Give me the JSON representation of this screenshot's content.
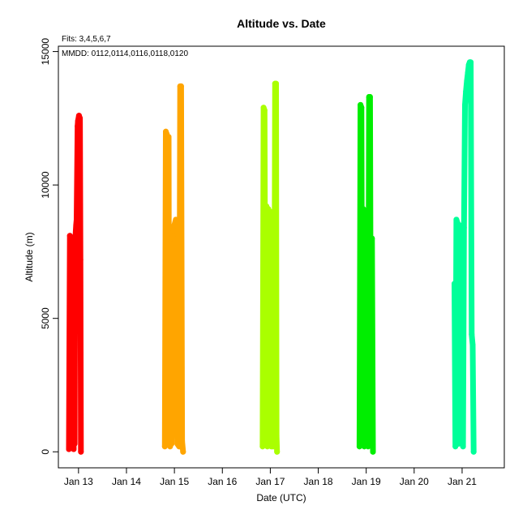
{
  "chart_data": {
    "type": "line",
    "title": "Altitude  vs. Date",
    "xlabel": "Date (UTC)",
    "ylabel": "Altitude (m)",
    "annotations": [
      "Fits: 3,4,5,6,7",
      "MMDD: 0112,0114,0116,0118,0120"
    ],
    "xlim": [
      12.58,
      21.88
    ],
    "ylim": [
      -600,
      15200
    ],
    "x_ticks": [
      {
        "value": 13,
        "label": "Jan 13"
      },
      {
        "value": 14,
        "label": "Jan 14"
      },
      {
        "value": 15,
        "label": "Jan 15"
      },
      {
        "value": 16,
        "label": "Jan 16"
      },
      {
        "value": 17,
        "label": "Jan 17"
      },
      {
        "value": 18,
        "label": "Jan 18"
      },
      {
        "value": 19,
        "label": "Jan 19"
      },
      {
        "value": 20,
        "label": "Jan 20"
      },
      {
        "value": 21,
        "label": "Jan 21"
      }
    ],
    "y_ticks": [
      {
        "value": 0,
        "label": "0"
      },
      {
        "value": 5000,
        "label": "5000"
      },
      {
        "value": 10000,
        "label": "10000"
      },
      {
        "value": 15000,
        "label": "15000"
      }
    ],
    "grid": false,
    "legend": "none",
    "series": [
      {
        "color": "#ff0000",
        "x": [
          12.8,
          12.82,
          12.85,
          12.86,
          12.88,
          12.9,
          12.91,
          12.92,
          12.93,
          12.95,
          12.96,
          12.98,
          12.99,
          13.01,
          13.03,
          13.04,
          13.05
        ],
        "y": [
          100,
          8100,
          8000,
          200,
          8000,
          100,
          8000,
          300,
          7900,
          8500,
          8700,
          12200,
          12400,
          12600,
          12500,
          7200,
          0
        ]
      },
      {
        "color": "#ffa500",
        "x": [
          14.8,
          14.82,
          14.84,
          14.86,
          14.88,
          14.89,
          14.9,
          14.91,
          14.92,
          14.94,
          14.96,
          14.98,
          15.0,
          15.03,
          15.06,
          15.1,
          15.12,
          15.14,
          15.16,
          15.18
        ],
        "y": [
          200,
          12000,
          11900,
          2000,
          11800,
          300,
          7900,
          200,
          8000,
          300,
          8100,
          8300,
          8500,
          8700,
          300,
          200,
          13700,
          13700,
          400,
          0
        ]
      },
      {
        "color": "#aaff00",
        "x": [
          16.84,
          16.86,
          16.88,
          16.9,
          16.92,
          16.94,
          16.96,
          16.98,
          17.0,
          17.02,
          17.04,
          17.06,
          17.08,
          17.1,
          17.12,
          17.13,
          17.14
        ],
        "y": [
          200,
          12900,
          12800,
          300,
          9200,
          200,
          9100,
          300,
          9000,
          200,
          300,
          200,
          300,
          13800,
          13800,
          600,
          0
        ]
      },
      {
        "color": "#00ee00",
        "x": [
          18.86,
          18.88,
          18.9,
          18.92,
          18.94,
          18.96,
          18.98,
          19.0,
          19.02,
          19.04,
          19.06,
          19.08,
          19.1,
          19.12,
          19.14
        ],
        "y": [
          200,
          13000,
          12900,
          300,
          9100,
          200,
          8900,
          300,
          8500,
          200,
          13300,
          13300,
          300,
          8000,
          0
        ]
      },
      {
        "color": "#00ff99",
        "x": [
          20.84,
          20.86,
          20.88,
          20.9,
          20.92,
          20.94,
          20.96,
          20.98,
          21.0,
          21.02,
          21.04,
          21.06,
          21.08,
          21.1,
          21.12,
          21.14,
          21.16,
          21.18,
          21.2,
          21.22,
          21.24
        ],
        "y": [
          6300,
          200,
          8700,
          8600,
          300,
          8500,
          400,
          8300,
          300,
          200,
          8400,
          13000,
          13500,
          13900,
          14200,
          14500,
          14600,
          14600,
          4400,
          4000,
          0
        ]
      }
    ]
  }
}
